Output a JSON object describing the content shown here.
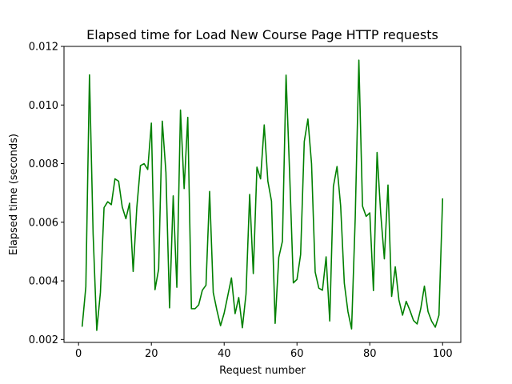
{
  "chart_data": {
    "type": "line",
    "title": "Elapsed time for Load New Course Page HTTP requests",
    "xlabel": "Request number",
    "ylabel": "Elapsed time (seconds)",
    "xlim": [
      -4,
      105
    ],
    "ylim": [
      0.0019,
      0.012
    ],
    "xticks": [
      0,
      20,
      40,
      60,
      80,
      100
    ],
    "xtick_labels": [
      "0",
      "20",
      "40",
      "60",
      "80",
      "100"
    ],
    "yticks": [
      0.002,
      0.004,
      0.006,
      0.008,
      0.01,
      0.012
    ],
    "ytick_labels": [
      "0.002",
      "0.004",
      "0.006",
      "0.008",
      "0.010",
      "0.012"
    ],
    "grid": false,
    "legend": "none",
    "series": [
      {
        "color": "#008000",
        "x": [
          1,
          2,
          3,
          4,
          5,
          6,
          7,
          8,
          9,
          10,
          11,
          12,
          13,
          14,
          15,
          16,
          17,
          18,
          19,
          20,
          21,
          22,
          23,
          24,
          25,
          26,
          27,
          28,
          29,
          30,
          31,
          32,
          33,
          34,
          35,
          36,
          37,
          38,
          39,
          40,
          41,
          42,
          43,
          44,
          45,
          46,
          47,
          48,
          49,
          50,
          51,
          52,
          53,
          54,
          55,
          56,
          57,
          58,
          59,
          60,
          61,
          62,
          63,
          64,
          65,
          66,
          67,
          68,
          69,
          70,
          71,
          72,
          73,
          74,
          75,
          76,
          77,
          78,
          79,
          80,
          81,
          82,
          83,
          84,
          85,
          86,
          87,
          88,
          89,
          90,
          91,
          92,
          93,
          94,
          95,
          96,
          97,
          98,
          99,
          100
        ],
        "values": [
          0.00245,
          0.0038,
          0.01103,
          0.0056,
          0.00231,
          0.0036,
          0.0065,
          0.0067,
          0.0066,
          0.00748,
          0.0074,
          0.00652,
          0.00612,
          0.00665,
          0.00432,
          0.0065,
          0.00793,
          0.008,
          0.0078,
          0.00938,
          0.0037,
          0.0044,
          0.00945,
          0.0077,
          0.00308,
          0.0069,
          0.00378,
          0.00983,
          0.00715,
          0.00958,
          0.00305,
          0.00305,
          0.00318,
          0.00368,
          0.00385,
          0.00705,
          0.0036,
          0.003,
          0.00247,
          0.0029,
          0.0035,
          0.0041,
          0.00288,
          0.00343,
          0.0024,
          0.00355,
          0.00695,
          0.00425,
          0.00788,
          0.00748,
          0.00932,
          0.0074,
          0.00672,
          0.00255,
          0.0048,
          0.00535,
          0.01102,
          0.0076,
          0.00393,
          0.00405,
          0.0049,
          0.00875,
          0.00952,
          0.008,
          0.0043,
          0.00375,
          0.00368,
          0.00482,
          0.00263,
          0.00722,
          0.0079,
          0.00655,
          0.00392,
          0.00295,
          0.00236,
          0.00615,
          0.01153,
          0.00655,
          0.0062,
          0.00632,
          0.00367,
          0.00838,
          0.0063,
          0.00475,
          0.00727,
          0.00347,
          0.00448,
          0.00335,
          0.00283,
          0.0033,
          0.003,
          0.00265,
          0.00253,
          0.00305,
          0.00382,
          0.00295,
          0.00262,
          0.00242,
          0.00283,
          0.0068
        ]
      }
    ]
  }
}
